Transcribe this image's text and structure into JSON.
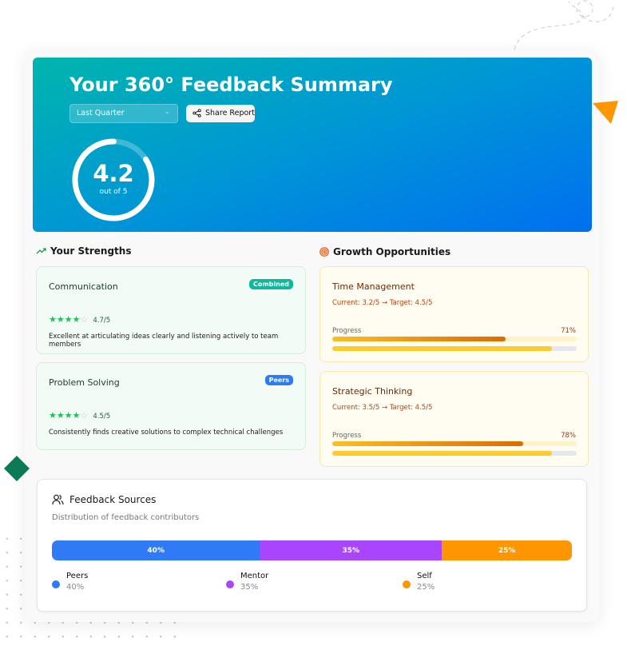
{
  "header": {
    "title": "Your 360° Feedback Summary",
    "period_select": "Last Quarter",
    "share_label": "Share Report"
  },
  "score": {
    "value": "4.2",
    "caption": "out of 5",
    "fraction": 0.84
  },
  "strengths": {
    "heading": "Your Strengths",
    "items": [
      {
        "name": "Communication",
        "badge": "Combined",
        "badge_color": "#0fb89a",
        "stars": 4,
        "rating": "4.7/5",
        "description": "Excellent at articulating ideas clearly and listening actively to team members"
      },
      {
        "name": "Problem Solving",
        "badge": "Peers",
        "badge_color": "#2f7bf5",
        "stars": 4,
        "rating": "4.5/5",
        "description": "Consistently finds creative solutions to complex technical challenges"
      }
    ]
  },
  "growth": {
    "heading": "Growth Opportunities",
    "items": [
      {
        "name": "Time Management",
        "detail": "Current: 3.2/5 → Target: 4.5/5",
        "progress_label": "Progress",
        "progress": "71%",
        "progress_value": 0.71,
        "secondary_value": 0.9
      },
      {
        "name": "Strategic Thinking",
        "detail": "Current: 3.5/5 → Target: 4.5/5",
        "progress_label": "Progress",
        "progress": "78%",
        "progress_value": 0.78,
        "secondary_value": 0.9
      }
    ]
  },
  "sources": {
    "heading": "Feedback Sources",
    "subtitle": "Distribution of feedback contributors",
    "items": [
      {
        "name": "Peers",
        "percent": "40%",
        "value": 40,
        "color": "#2f7bf5"
      },
      {
        "name": "Mentor",
        "percent": "35%",
        "value": 35,
        "color": "#a945fc"
      },
      {
        "name": "Self",
        "percent": "25%",
        "value": 25,
        "color": "#fd9600"
      }
    ]
  }
}
